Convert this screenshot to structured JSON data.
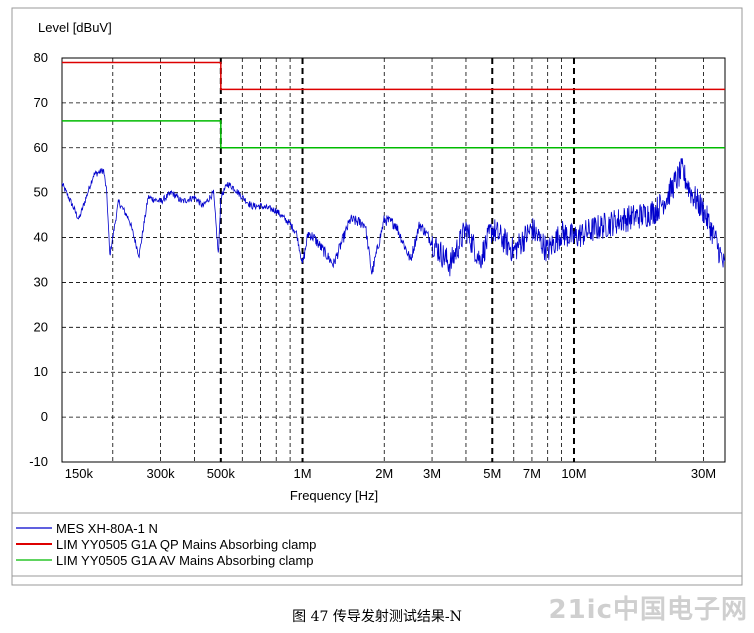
{
  "chart_data": {
    "type": "line",
    "ylabel": "Level [dBuV]",
    "xlabel": "Frequency [Hz]",
    "x_scale": "log",
    "xlim_hz": [
      130000,
      36000000
    ],
    "ylim": [
      -10,
      80
    ],
    "y_ticks": [
      80,
      70,
      60,
      50,
      40,
      30,
      20,
      10,
      0,
      -10
    ],
    "x_tick_labels": [
      {
        "label": "150k",
        "hz": 150000
      },
      {
        "label": "300k",
        "hz": 300000
      },
      {
        "label": "500k",
        "hz": 500000
      },
      {
        "label": "1M",
        "hz": 1000000
      },
      {
        "label": "2M",
        "hz": 2000000
      },
      {
        "label": "3M",
        "hz": 3000000
      },
      {
        "label": "5M",
        "hz": 5000000
      },
      {
        "label": "7M",
        "hz": 7000000
      },
      {
        "label": "10M",
        "hz": 10000000
      },
      {
        "label": "30M",
        "hz": 30000000
      }
    ],
    "grid": true,
    "legend_position": "bottom",
    "series": [
      {
        "name": "MES  XH-80A-1 N",
        "color": "#0000cc",
        "x": [
          130000,
          140000,
          150000,
          170000,
          185000,
          190000,
          195000,
          210000,
          230000,
          250000,
          270000,
          300000,
          330000,
          360000,
          400000,
          430000,
          470000,
          490000,
          500000,
          530000,
          560000,
          600000,
          650000,
          700000,
          800000,
          900000,
          950000,
          1000000,
          1050000,
          1100000,
          1300000,
          1500000,
          1700000,
          1800000,
          2000000,
          2200000,
          2500000,
          2700000,
          3000000,
          3500000,
          4000000,
          4500000,
          5000000,
          6000000,
          7000000,
          8000000,
          9000000,
          10000000,
          12000000,
          15000000,
          18000000,
          20000000,
          22000000,
          25000000,
          27000000,
          30000000,
          33000000,
          36000000
        ],
        "y": [
          52,
          48,
          44,
          54,
          55,
          50,
          36,
          48,
          44,
          36,
          49,
          48,
          50,
          48,
          49,
          47,
          50,
          36,
          49,
          52,
          51,
          49,
          47,
          47,
          46,
          43,
          41,
          34,
          41,
          40,
          34,
          44,
          43,
          32,
          44,
          43,
          35,
          43,
          39,
          34,
          42,
          35,
          42,
          37,
          42,
          37,
          41,
          40,
          42,
          44,
          45,
          46,
          49,
          55,
          50,
          46,
          40,
          33
        ]
      },
      {
        "name": "LIM  YY0505 G1A QP Mains  Absorbing clamp",
        "color": "#dd0000",
        "x": [
          130000,
          500000,
          500000,
          36000000
        ],
        "y": [
          79,
          79,
          73,
          73
        ]
      },
      {
        "name": "LIM  YY0505 G1A AV Mains  Absorbing clamp",
        "color": "#00bb00",
        "x": [
          130000,
          500000,
          500000,
          36000000
        ],
        "y": [
          66,
          66,
          60,
          60
        ]
      }
    ]
  },
  "caption": "图 47  传导发射测试结果-N",
  "watermark": "21ic中国电子网",
  "colors": {
    "frame": "#888888",
    "grid": "#000000",
    "background": "#ffffff"
  }
}
